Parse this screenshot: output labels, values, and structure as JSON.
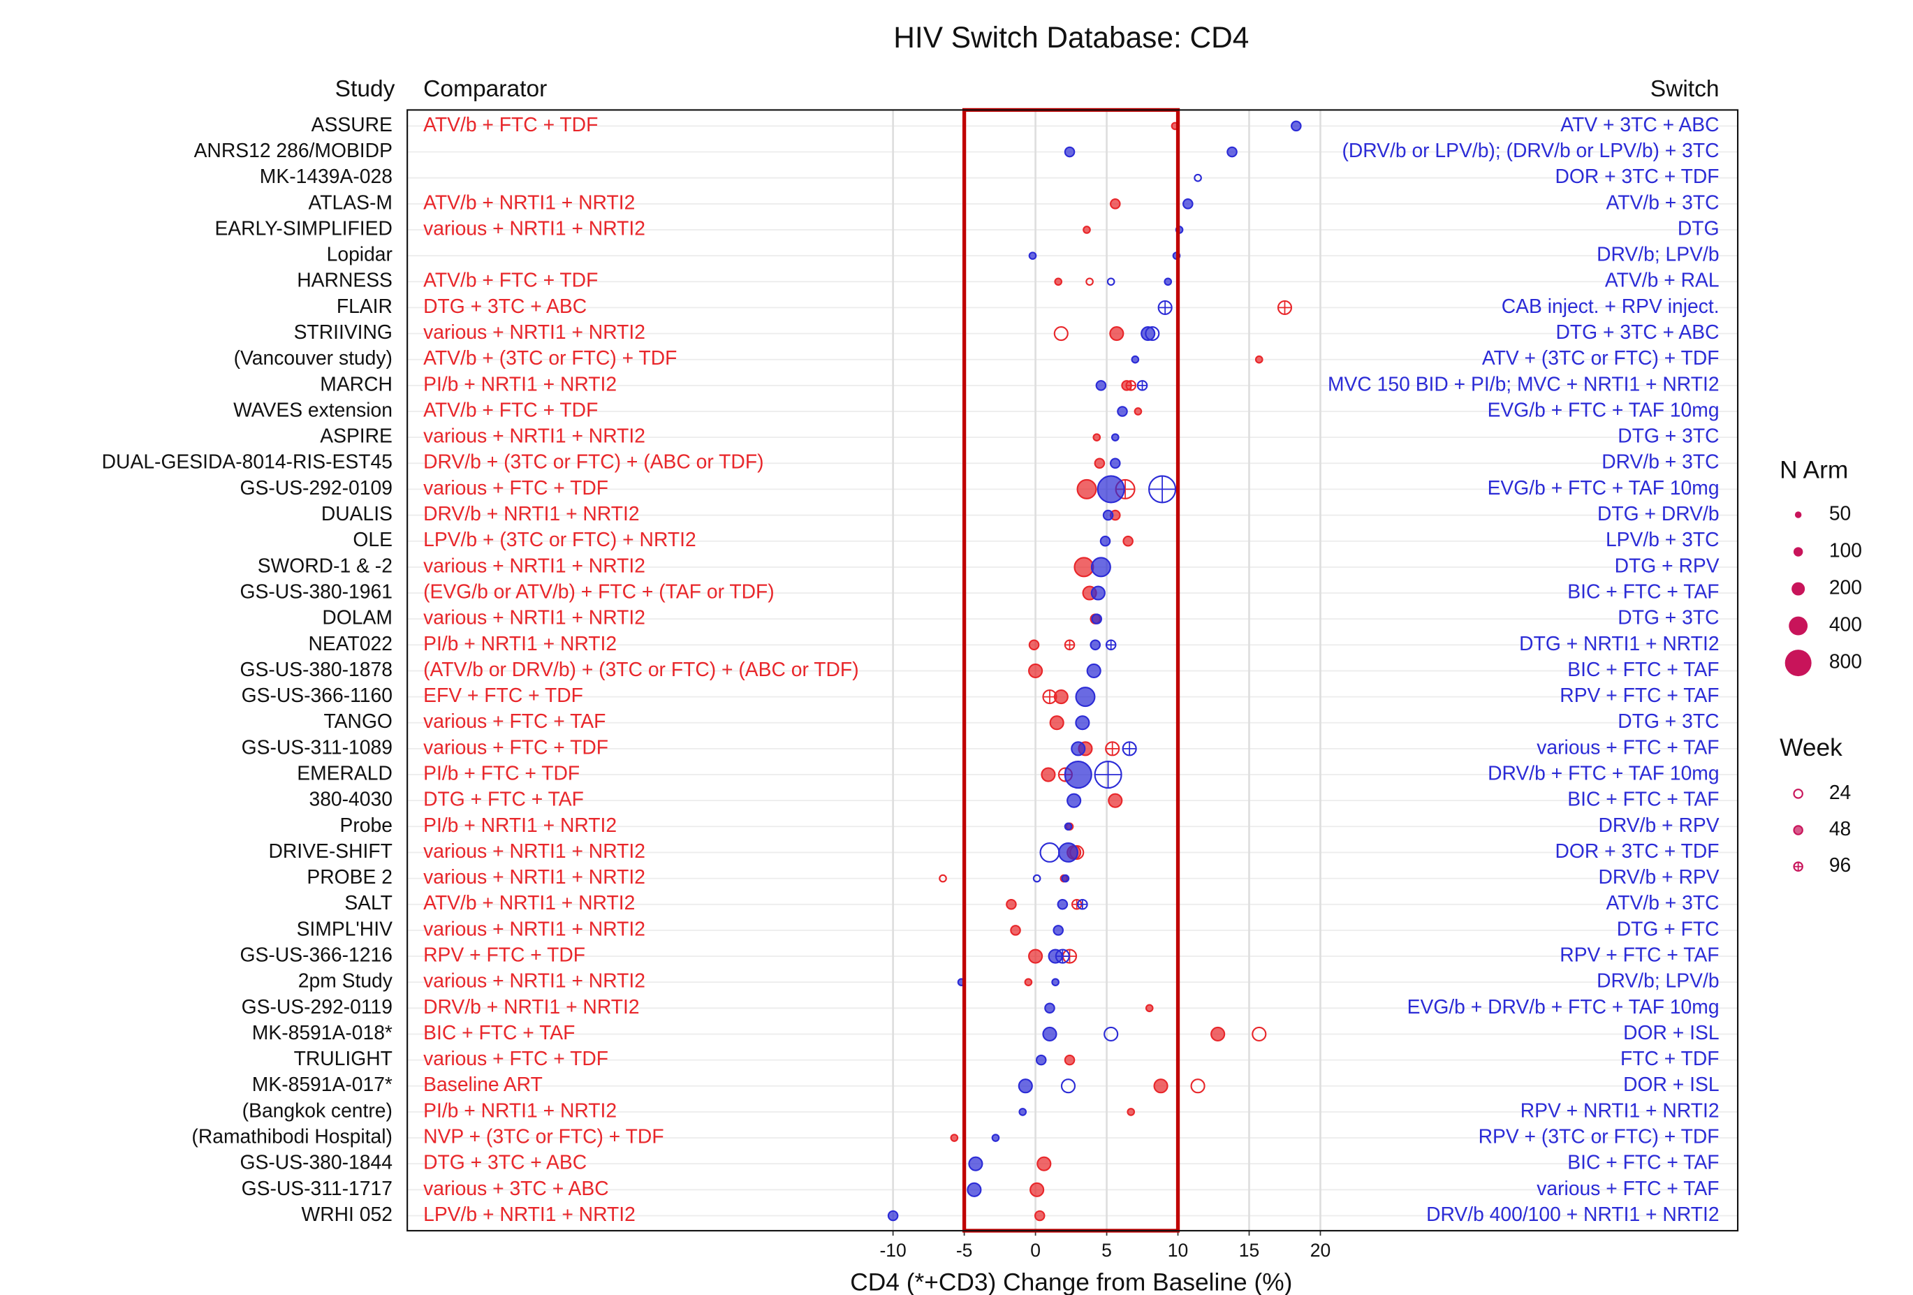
{
  "chart_data": {
    "type": "dotplot",
    "title": "HIV Switch Database: CD4",
    "xlabel": "CD4 (*+CD3) Change from Baseline (%)",
    "categories_title": "Study",
    "categories": [
      "ASSURE",
      "ANRS12 286/MOBIDP",
      "MK-1439A-028",
      "ATLAS-M",
      "EARLY-SIMPLIFIED",
      "Lopidar",
      "HARNESS",
      "FLAIR",
      "STRIIVING",
      "(Vancouver study)",
      "MARCH",
      "WAVES extension",
      "ASPIRE",
      "DUAL-GESIDA-8014-RIS-EST45",
      "GS-US-292-0109",
      "DUALIS",
      "OLE",
      "SWORD-1 & -2",
      "GS-US-380-1961",
      "DOLAM",
      "NEAT022",
      "GS-US-380-1878",
      "GS-US-366-1160",
      "TANGO",
      "GS-US-311-1089",
      "EMERALD",
      "380-4030",
      "Probe",
      "DRIVE-SHIFT",
      "PROBE 2",
      "SALT",
      "SIMPL'HIV",
      "GS-US-366-1216",
      "2pm Study",
      "GS-US-292-0119",
      "MK-8591A-018*",
      "TRULIGHT",
      "MK-8591A-017*",
      "(Bangkok centre)",
      "(Ramathibodi Hospital)",
      "GS-US-380-1844",
      "GS-US-311-1717",
      "WRHI 052"
    ],
    "xlim": [
      -44.1,
      49.3
    ],
    "xticks": [
      -10,
      -5,
      0,
      5,
      10,
      15,
      20
    ],
    "highlight": [
      -5,
      10
    ],
    "grid": true,
    "series": [
      {
        "name": "Comparator",
        "color": "#e8262a",
        "labels": [
          "ATV/b + FTC + TDF",
          null,
          null,
          "ATV/b + NRTI1 + NRTI2",
          "various + NRTI1 + NRTI2",
          null,
          "ATV/b + FTC + TDF",
          "DTG + 3TC + ABC",
          "various + NRTI1 + NRTI2",
          "ATV/b + (3TC or FTC) + TDF",
          "PI/b + NRTI1 + NRTI2",
          "ATV/b + FTC + TDF",
          "various + NRTI1 + NRTI2",
          "DRV/b + (3TC or FTC) + (ABC or TDF)",
          "various + FTC + TDF",
          "DRV/b + NRTI1 + NRTI2",
          "LPV/b + (3TC or FTC) + NRTI2",
          "various + NRTI1 + NRTI2",
          "(EVG/b or ATV/b) + FTC + (TAF or TDF)",
          "various + NRTI1 + NRTI2",
          "PI/b + NRTI1 + NRTI2",
          "(ATV/b or DRV/b) + (3TC or FTC) + (ABC or TDF)",
          "EFV + FTC + TDF",
          "various + FTC + TAF",
          "various + FTC + TDF",
          "PI/b + FTC + TDF",
          "DTG + FTC + TAF",
          "PI/b + NRTI1 + NRTI2",
          "various + NRTI1 + NRTI2",
          "various + NRTI1 + NRTI2",
          "ATV/b + NRTI1 + NRTI2",
          "various + NRTI1 + NRTI2",
          "RPV + FTC + TDF",
          "various + NRTI1 + NRTI2",
          "DRV/b + NRTI1 + NRTI2",
          "BIC + FTC + TAF",
          "various + FTC + TDF",
          "Baseline ART",
          "PI/b + NRTI1 + NRTI2",
          "NVP + (3TC or FTC) + TDF",
          "DTG + 3TC + ABC",
          "various + 3TC + ABC",
          "LPV/b + NRTI1 + NRTI2"
        ],
        "points": [
          {
            "row": 0,
            "x": 9.8,
            "n": 50,
            "week": 48
          },
          {
            "row": 3,
            "x": 5.6,
            "n": 100,
            "week": 48
          },
          {
            "row": 4,
            "x": 3.6,
            "n": 50,
            "week": 48
          },
          {
            "row": 6,
            "x": 1.6,
            "n": 50,
            "week": 48
          },
          {
            "row": 6,
            "x": 3.8,
            "n": 50,
            "week": 24
          },
          {
            "row": 7,
            "x": 17.5,
            "n": 200,
            "week": 96
          },
          {
            "row": 8,
            "x": 1.8,
            "n": 200,
            "week": 24
          },
          {
            "row": 8,
            "x": 5.7,
            "n": 200,
            "week": 48
          },
          {
            "row": 9,
            "x": 15.7,
            "n": 50,
            "week": 48
          },
          {
            "row": 10,
            "x": 6.4,
            "n": 100,
            "week": 48
          },
          {
            "row": 10,
            "x": 6.7,
            "n": 100,
            "week": 96
          },
          {
            "row": 11,
            "x": 7.2,
            "n": 50,
            "week": 48
          },
          {
            "row": 12,
            "x": 4.3,
            "n": 50,
            "week": 48
          },
          {
            "row": 13,
            "x": 4.5,
            "n": 100,
            "week": 48
          },
          {
            "row": 14,
            "x": 3.6,
            "n": 400,
            "week": 48
          },
          {
            "row": 14,
            "x": 6.3,
            "n": 400,
            "week": 96
          },
          {
            "row": 15,
            "x": 5.6,
            "n": 100,
            "week": 48
          },
          {
            "row": 16,
            "x": 6.5,
            "n": 100,
            "week": 48
          },
          {
            "row": 17,
            "x": 3.4,
            "n": 400,
            "week": 48
          },
          {
            "row": 18,
            "x": 3.8,
            "n": 200,
            "week": 48
          },
          {
            "row": 19,
            "x": 4.2,
            "n": 100,
            "week": 48
          },
          {
            "row": 20,
            "x": -0.1,
            "n": 100,
            "week": 48
          },
          {
            "row": 20,
            "x": 2.4,
            "n": 100,
            "week": 96
          },
          {
            "row": 21,
            "x": 0.0,
            "n": 200,
            "week": 48
          },
          {
            "row": 22,
            "x": 1.0,
            "n": 200,
            "week": 96
          },
          {
            "row": 22,
            "x": 1.8,
            "n": 200,
            "week": 48
          },
          {
            "row": 23,
            "x": 1.5,
            "n": 200,
            "week": 48
          },
          {
            "row": 24,
            "x": 3.5,
            "n": 200,
            "week": 48
          },
          {
            "row": 24,
            "x": 5.4,
            "n": 200,
            "week": 96
          },
          {
            "row": 25,
            "x": 0.9,
            "n": 200,
            "week": 48
          },
          {
            "row": 25,
            "x": 2.1,
            "n": 200,
            "week": 96
          },
          {
            "row": 26,
            "x": 5.6,
            "n": 200,
            "week": 48
          },
          {
            "row": 27,
            "x": 2.4,
            "n": 50,
            "week": 48
          },
          {
            "row": 28,
            "x": 2.7,
            "n": 200,
            "week": 48
          },
          {
            "row": 28,
            "x": 2.9,
            "n": 200,
            "week": 24
          },
          {
            "row": 29,
            "x": -6.5,
            "n": 50,
            "week": 24
          },
          {
            "row": 29,
            "x": 2.0,
            "n": 50,
            "week": 48
          },
          {
            "row": 30,
            "x": -1.7,
            "n": 100,
            "week": 48
          },
          {
            "row": 30,
            "x": 2.9,
            "n": 100,
            "week": 96
          },
          {
            "row": 31,
            "x": -1.4,
            "n": 100,
            "week": 48
          },
          {
            "row": 32,
            "x": 0.0,
            "n": 200,
            "week": 48
          },
          {
            "row": 32,
            "x": 2.4,
            "n": 200,
            "week": 96
          },
          {
            "row": 33,
            "x": -0.5,
            "n": 50,
            "week": 48
          },
          {
            "row": 34,
            "x": 8.0,
            "n": 50,
            "week": 48
          },
          {
            "row": 35,
            "x": 12.8,
            "n": 200,
            "week": 48
          },
          {
            "row": 35,
            "x": 15.7,
            "n": 200,
            "week": 24
          },
          {
            "row": 36,
            "x": 2.4,
            "n": 100,
            "week": 48
          },
          {
            "row": 37,
            "x": 8.8,
            "n": 200,
            "week": 48
          },
          {
            "row": 37,
            "x": 11.4,
            "n": 200,
            "week": 24
          },
          {
            "row": 38,
            "x": 6.7,
            "n": 50,
            "week": 48
          },
          {
            "row": 39,
            "x": -5.7,
            "n": 50,
            "week": 48
          },
          {
            "row": 40,
            "x": 0.6,
            "n": 200,
            "week": 48
          },
          {
            "row": 41,
            "x": 0.1,
            "n": 200,
            "week": 48
          },
          {
            "row": 42,
            "x": 0.3,
            "n": 100,
            "week": 48
          }
        ]
      },
      {
        "name": "Switch",
        "color": "#2b2bd6",
        "labels": [
          "ATV + 3TC + ABC",
          "(DRV/b or LPV/b); (DRV/b or LPV/b) + 3TC",
          "DOR + 3TC + TDF",
          "ATV/b + 3TC",
          "DTG",
          "DRV/b; LPV/b",
          "ATV/b + RAL",
          "CAB inject. + RPV inject.",
          "DTG + 3TC + ABC",
          "ATV + (3TC or FTC) + TDF",
          "MVC 150 BID + PI/b; MVC + NRTI1 + NRTI2",
          "EVG/b + FTC + TAF 10mg",
          "DTG + 3TC",
          "DRV/b + 3TC",
          "EVG/b + FTC + TAF 10mg",
          "DTG + DRV/b",
          "LPV/b + 3TC",
          "DTG + RPV",
          "BIC + FTC + TAF",
          "DTG + 3TC",
          "DTG + NRTI1 + NRTI2",
          "BIC + FTC + TAF",
          "RPV + FTC + TAF",
          "DTG + 3TC",
          "various + FTC + TAF",
          "DRV/b + FTC + TAF 10mg",
          "BIC + FTC + TAF",
          "DRV/b + RPV",
          "DOR + 3TC + TDF",
          "DRV/b + RPV",
          "ATV/b + 3TC",
          "DTG + FTC",
          "RPV + FTC + TAF",
          "DRV/b; LPV/b",
          "EVG/b + DRV/b + FTC + TAF 10mg",
          "DOR + ISL",
          "FTC + TDF",
          "DOR + ISL",
          "RPV + NRTI1 + NRTI2",
          "RPV + (3TC or FTC) + TDF",
          "BIC + FTC + TAF",
          "various + FTC + TAF",
          "DRV/b 400/100 + NRTI1 + NRTI2"
        ],
        "points": [
          {
            "row": 0,
            "x": 18.3,
            "n": 100,
            "week": 48
          },
          {
            "row": 1,
            "x": 2.4,
            "n": 100,
            "week": 48
          },
          {
            "row": 1,
            "x": 13.8,
            "n": 100,
            "week": 48
          },
          {
            "row": 2,
            "x": 11.4,
            "n": 50,
            "week": 24
          },
          {
            "row": 3,
            "x": 10.7,
            "n": 100,
            "week": 48
          },
          {
            "row": 4,
            "x": 10.1,
            "n": 50,
            "week": 48
          },
          {
            "row": 5,
            "x": -0.2,
            "n": 50,
            "week": 48
          },
          {
            "row": 5,
            "x": 9.9,
            "n": 50,
            "week": 48
          },
          {
            "row": 6,
            "x": 5.3,
            "n": 50,
            "week": 24
          },
          {
            "row": 6,
            "x": 9.3,
            "n": 50,
            "week": 48
          },
          {
            "row": 7,
            "x": 9.1,
            "n": 200,
            "week": 96
          },
          {
            "row": 8,
            "x": 7.9,
            "n": 200,
            "week": 48
          },
          {
            "row": 8,
            "x": 8.2,
            "n": 200,
            "week": 24
          },
          {
            "row": 9,
            "x": 7.0,
            "n": 50,
            "week": 48
          },
          {
            "row": 10,
            "x": 4.6,
            "n": 100,
            "week": 48
          },
          {
            "row": 10,
            "x": 7.5,
            "n": 100,
            "week": 96
          },
          {
            "row": 11,
            "x": 6.1,
            "n": 100,
            "week": 48
          },
          {
            "row": 12,
            "x": 5.6,
            "n": 50,
            "week": 48
          },
          {
            "row": 13,
            "x": 5.6,
            "n": 100,
            "week": 48
          },
          {
            "row": 14,
            "x": 5.3,
            "n": 800,
            "week": 48
          },
          {
            "row": 14,
            "x": 8.9,
            "n": 800,
            "week": 96
          },
          {
            "row": 15,
            "x": 5.1,
            "n": 100,
            "week": 48
          },
          {
            "row": 16,
            "x": 4.9,
            "n": 100,
            "week": 48
          },
          {
            "row": 17,
            "x": 4.6,
            "n": 400,
            "week": 48
          },
          {
            "row": 18,
            "x": 4.4,
            "n": 200,
            "week": 48
          },
          {
            "row": 19,
            "x": 4.3,
            "n": 100,
            "week": 48
          },
          {
            "row": 20,
            "x": 4.2,
            "n": 100,
            "week": 48
          },
          {
            "row": 20,
            "x": 5.3,
            "n": 100,
            "week": 96
          },
          {
            "row": 21,
            "x": 4.1,
            "n": 200,
            "week": 48
          },
          {
            "row": 22,
            "x": 3.5,
            "n": 400,
            "week": 48
          },
          {
            "row": 23,
            "x": 3.3,
            "n": 200,
            "week": 48
          },
          {
            "row": 24,
            "x": 3.0,
            "n": 200,
            "week": 48
          },
          {
            "row": 24,
            "x": 6.6,
            "n": 200,
            "week": 96
          },
          {
            "row": 25,
            "x": 3.0,
            "n": 800,
            "week": 48
          },
          {
            "row": 25,
            "x": 5.1,
            "n": 800,
            "week": 96
          },
          {
            "row": 26,
            "x": 2.7,
            "n": 200,
            "week": 48
          },
          {
            "row": 27,
            "x": 2.3,
            "n": 50,
            "week": 48
          },
          {
            "row": 28,
            "x": 1.0,
            "n": 400,
            "week": 24
          },
          {
            "row": 28,
            "x": 2.3,
            "n": 400,
            "week": 48
          },
          {
            "row": 29,
            "x": 0.1,
            "n": 50,
            "week": 24
          },
          {
            "row": 29,
            "x": 2.1,
            "n": 50,
            "week": 48
          },
          {
            "row": 30,
            "x": 1.9,
            "n": 100,
            "week": 48
          },
          {
            "row": 30,
            "x": 3.3,
            "n": 100,
            "week": 96
          },
          {
            "row": 31,
            "x": 1.6,
            "n": 100,
            "week": 48
          },
          {
            "row": 32,
            "x": 1.4,
            "n": 200,
            "week": 48
          },
          {
            "row": 32,
            "x": 1.9,
            "n": 200,
            "week": 96
          },
          {
            "row": 33,
            "x": -5.2,
            "n": 50,
            "week": 48
          },
          {
            "row": 33,
            "x": 1.4,
            "n": 50,
            "week": 48
          },
          {
            "row": 34,
            "x": 1.0,
            "n": 100,
            "week": 48
          },
          {
            "row": 35,
            "x": 1.0,
            "n": 200,
            "week": 48
          },
          {
            "row": 35,
            "x": 5.3,
            "n": 200,
            "week": 24
          },
          {
            "row": 36,
            "x": 0.4,
            "n": 100,
            "week": 48
          },
          {
            "row": 37,
            "x": -0.7,
            "n": 200,
            "week": 48
          },
          {
            "row": 37,
            "x": 2.3,
            "n": 200,
            "week": 24
          },
          {
            "row": 38,
            "x": -0.9,
            "n": 50,
            "week": 48
          },
          {
            "row": 39,
            "x": -2.8,
            "n": 50,
            "week": 48
          },
          {
            "row": 40,
            "x": -4.2,
            "n": 200,
            "week": 48
          },
          {
            "row": 41,
            "x": -4.3,
            "n": 200,
            "week": 48
          },
          {
            "row": 42,
            "x": -10.0,
            "n": 100,
            "week": 48
          }
        ]
      }
    ],
    "size_legend": {
      "title": "N Arm",
      "values": [
        50,
        100,
        200,
        400,
        800
      ]
    },
    "week_legend": {
      "title": "Week",
      "values": [
        24,
        48,
        96
      ],
      "styles": [
        "open",
        "filled",
        "crossed"
      ]
    },
    "legend_color": "#c8145a",
    "highlight_color": "#c00000"
  }
}
